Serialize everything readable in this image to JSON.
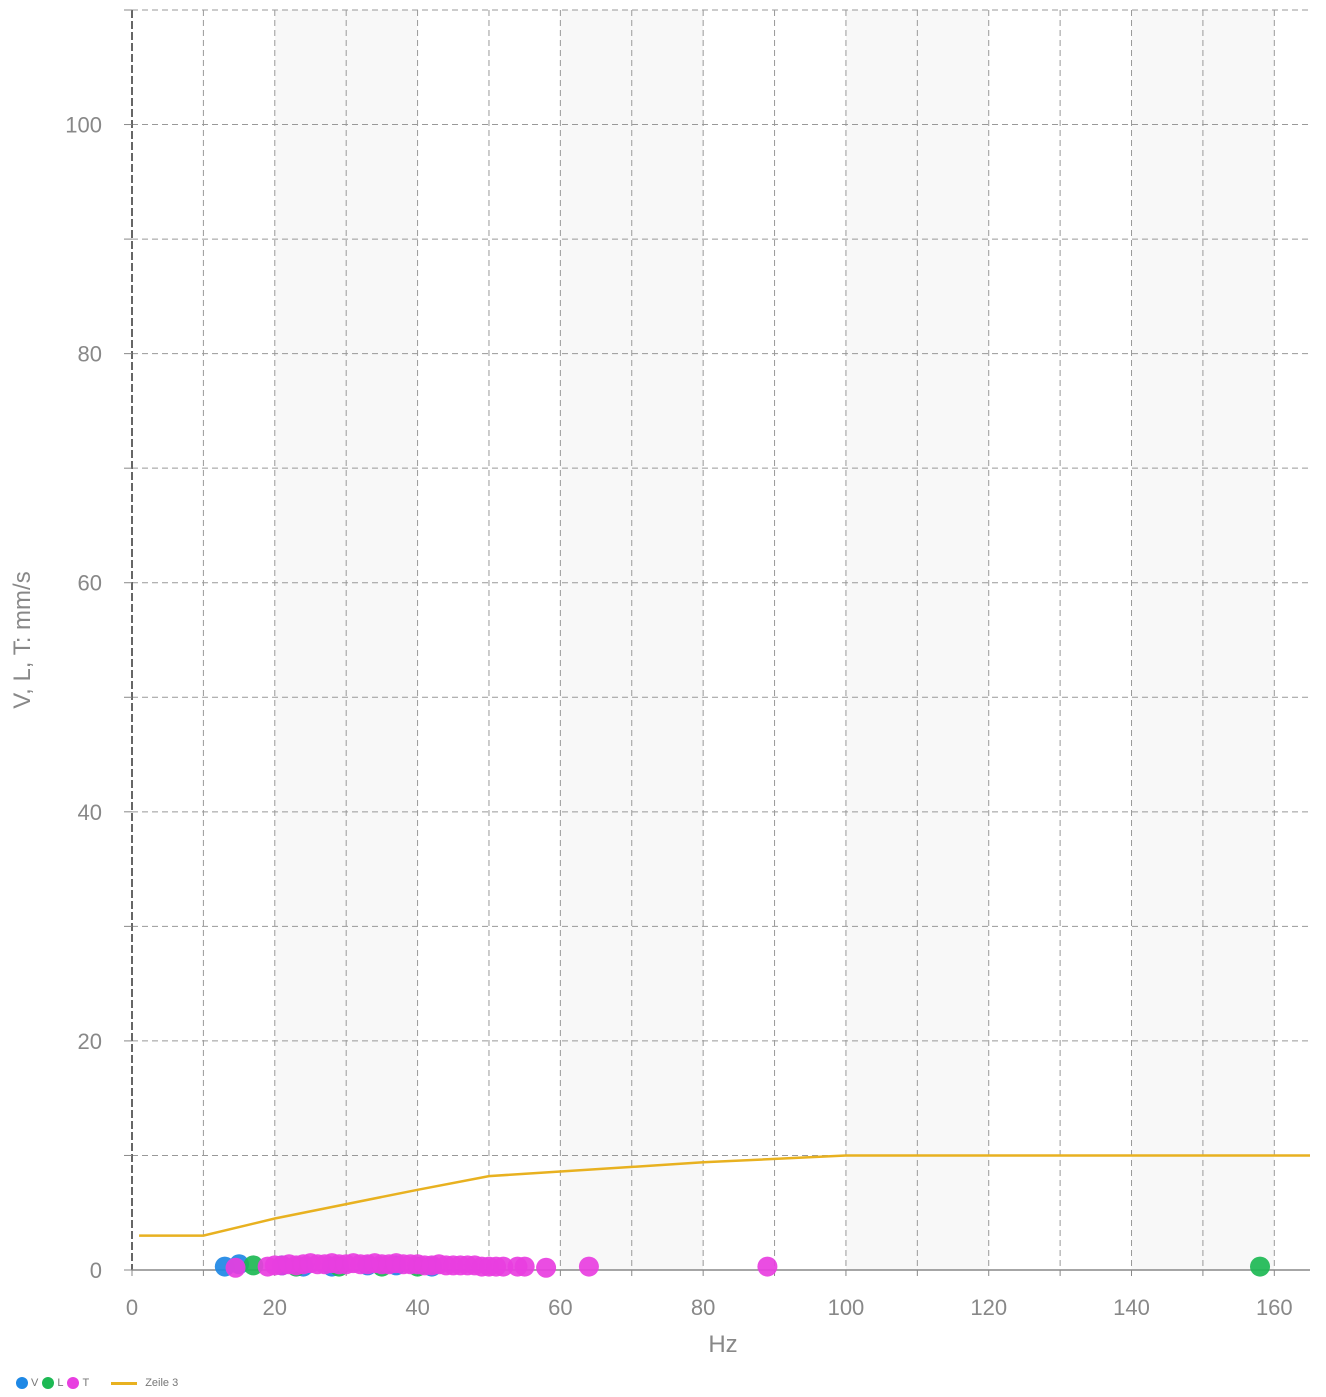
{
  "chart_data": {
    "type": "scatter",
    "xlabel": "Hz",
    "ylabel": "V, L, T: mm/s",
    "xlim": [
      0,
      165
    ],
    "ylim": [
      0,
      110
    ],
    "x_ticks": [
      0,
      20,
      40,
      60,
      80,
      100,
      120,
      140,
      160
    ],
    "y_ticks": [
      0,
      20,
      40,
      60,
      80,
      100
    ],
    "grid": true,
    "legend_position": "bottom-left",
    "series": [
      {
        "name": "V",
        "color": "#1e88e5",
        "points": [
          [
            13,
            0.3
          ],
          [
            15,
            0.5
          ],
          [
            21,
            0.4
          ],
          [
            24,
            0.3
          ],
          [
            28,
            0.3
          ],
          [
            33,
            0.4
          ],
          [
            37,
            0.4
          ],
          [
            42,
            0.3
          ]
        ]
      },
      {
        "name": "L",
        "color": "#1db954",
        "points": [
          [
            17,
            0.4
          ],
          [
            23,
            0.3
          ],
          [
            29,
            0.3
          ],
          [
            35,
            0.3
          ],
          [
            40,
            0.3
          ],
          [
            158,
            0.3
          ]
        ]
      },
      {
        "name": "T",
        "color": "#e83ee0",
        "points": [
          [
            14.5,
            0.2
          ],
          [
            19,
            0.3
          ],
          [
            20,
            0.4
          ],
          [
            21,
            0.4
          ],
          [
            22,
            0.5
          ],
          [
            23,
            0.4
          ],
          [
            24,
            0.5
          ],
          [
            25,
            0.6
          ],
          [
            26,
            0.5
          ],
          [
            27,
            0.5
          ],
          [
            28,
            0.6
          ],
          [
            29,
            0.5
          ],
          [
            30,
            0.5
          ],
          [
            31,
            0.6
          ],
          [
            32,
            0.5
          ],
          [
            33,
            0.5
          ],
          [
            34,
            0.6
          ],
          [
            35,
            0.5
          ],
          [
            36,
            0.5
          ],
          [
            37,
            0.6
          ],
          [
            38,
            0.5
          ],
          [
            39,
            0.5
          ],
          [
            40,
            0.5
          ],
          [
            41,
            0.4
          ],
          [
            42,
            0.4
          ],
          [
            43,
            0.5
          ],
          [
            44,
            0.4
          ],
          [
            45,
            0.4
          ],
          [
            46,
            0.4
          ],
          [
            47,
            0.4
          ],
          [
            48,
            0.4
          ],
          [
            49,
            0.3
          ],
          [
            50,
            0.3
          ],
          [
            51,
            0.3
          ],
          [
            52,
            0.3
          ],
          [
            54,
            0.3
          ],
          [
            55,
            0.3
          ],
          [
            58,
            0.2
          ],
          [
            64,
            0.3
          ],
          [
            89,
            0.3
          ]
        ]
      },
      {
        "name": "Zeile 3",
        "type": "line",
        "color": "#e8b120",
        "points": [
          [
            1,
            3
          ],
          [
            10,
            3
          ],
          [
            20,
            4.5
          ],
          [
            40,
            7
          ],
          [
            50,
            8.2
          ],
          [
            60,
            8.6
          ],
          [
            80,
            9.4
          ],
          [
            100,
            10
          ],
          [
            165,
            10
          ]
        ]
      }
    ]
  }
}
